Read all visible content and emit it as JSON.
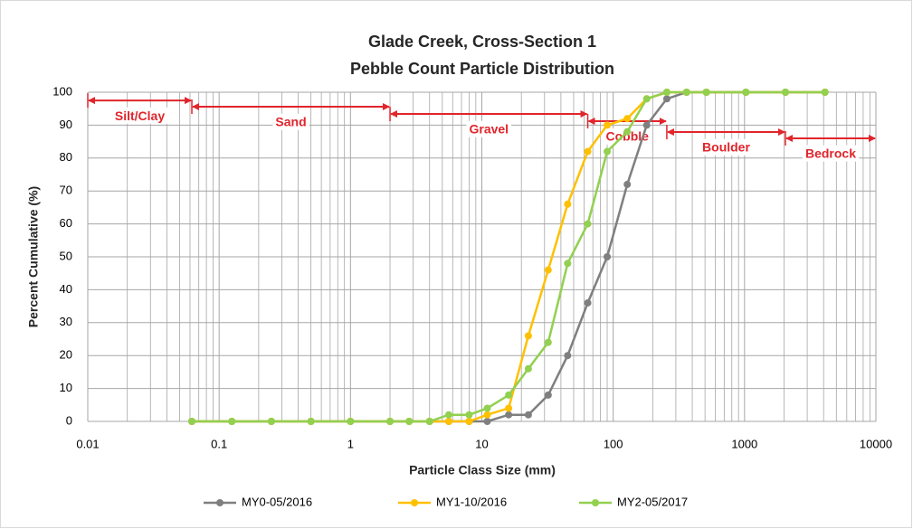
{
  "chart_data": {
    "type": "line",
    "title": [
      "Glade Creek, Cross-Section 1",
      "Pebble Count Particle Distribution"
    ],
    "x_label": "Particle Class Size (mm)",
    "y_label": "Percent Cumulative (%)",
    "x": [
      0.062,
      0.125,
      0.25,
      0.5,
      1,
      2,
      2.8,
      4,
      5.6,
      8,
      11,
      16,
      22.6,
      32,
      45,
      64,
      90,
      128,
      180,
      256,
      362,
      512,
      1024,
      2048,
      4096
    ],
    "series": [
      {
        "name": "MY0-05/2016",
        "color": "#7f7f7f",
        "values": [
          0,
          0,
          0,
          0,
          0,
          0,
          0,
          0,
          0,
          0,
          0,
          2,
          2,
          8,
          20,
          36,
          50,
          72,
          90,
          98,
          100,
          100,
          100,
          100,
          100
        ]
      },
      {
        "name": "MY1-10/2016",
        "color": "#ffc000",
        "values": [
          0,
          0,
          0,
          0,
          0,
          0,
          0,
          0,
          0,
          0,
          2,
          4,
          26,
          46,
          66,
          82,
          90,
          92,
          98,
          100,
          100,
          100,
          100,
          100,
          100
        ]
      },
      {
        "name": "MY2-05/2017",
        "color": "#92d050",
        "values": [
          0,
          0,
          0,
          0,
          0,
          0,
          0,
          0,
          2,
          2,
          4,
          8,
          16,
          24,
          48,
          60,
          82,
          88,
          98,
          100,
          100,
          100,
          100,
          100,
          100
        ]
      }
    ],
    "xlim": [
      0.01,
      10000
    ],
    "xticks": [
      0.01,
      0.1,
      1,
      10,
      100,
      1000,
      10000
    ],
    "x_log": true,
    "ylim": [
      0,
      100
    ],
    "yticks": [
      0,
      10,
      20,
      30,
      40,
      50,
      60,
      70,
      80,
      90,
      100
    ],
    "grid": true,
    "minor_grid": true,
    "legend": "bottom",
    "annotations": [
      {
        "text": "Silt/Clay",
        "x0": 0.01,
        "x1": 0.062,
        "y": 97.5
      },
      {
        "text": "Sand",
        "x0": 0.062,
        "x1": 2,
        "y": 95.6
      },
      {
        "text": "Gravel",
        "x0": 2,
        "x1": 64,
        "y": 93.4
      },
      {
        "text": "Cobble",
        "x0": 64,
        "x1": 256,
        "y": 91.2
      },
      {
        "text": "Boulder",
        "x0": 256,
        "x1": 2048,
        "y": 87.9
      },
      {
        "text": "Bedrock",
        "x0": 2048,
        "x1": 10000,
        "y": 86
      }
    ]
  }
}
